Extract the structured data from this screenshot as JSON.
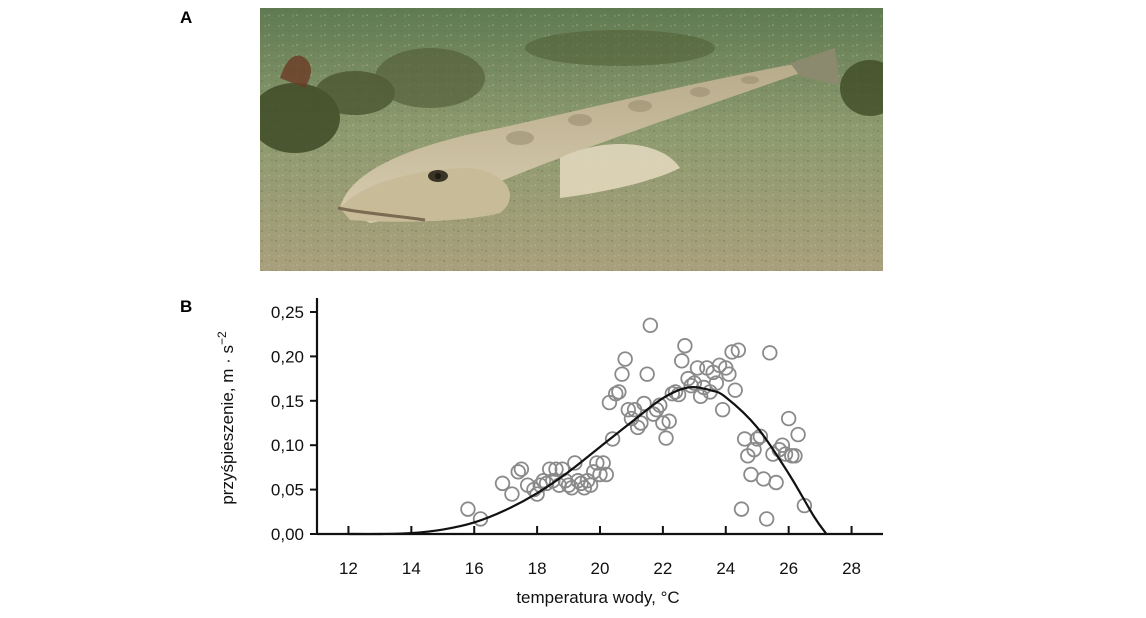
{
  "panels": {
    "a_label": "A",
    "b_label": "B"
  },
  "photo": {
    "subject": "flatfish-on-sandy-seabed"
  },
  "chart_data": {
    "type": "scatter",
    "title": "",
    "xlabel": "temperatura wody, °C",
    "ylabel": "przyśpieszenie, m · s",
    "ylabel_exponent": "−2",
    "xlim": [
      11,
      29
    ],
    "ylim": [
      0,
      0.25
    ],
    "x_ticks": [
      12,
      14,
      16,
      18,
      20,
      22,
      24,
      26,
      28
    ],
    "x_tick_labels": [
      "12",
      "14",
      "16",
      "18",
      "20",
      "22",
      "24",
      "26",
      "28"
    ],
    "y_ticks": [
      0,
      0.05,
      0.1,
      0.15,
      0.2,
      0.25
    ],
    "y_tick_labels": [
      "0,00",
      "0,05",
      "0,10",
      "0,15",
      "0,20",
      "0,25"
    ],
    "grid": false,
    "marker": "open-circle",
    "marker_color": "#8a8a8a",
    "line_color": "#111111",
    "series": [
      {
        "kind": "points",
        "x": [
          15.8,
          16.2,
          16.9,
          17.2,
          17.4,
          17.5,
          17.7,
          17.9,
          18.0,
          18.1,
          18.2,
          18.3,
          18.4,
          18.5,
          18.6,
          18.7,
          18.8,
          18.9,
          19.0,
          19.1,
          19.2,
          19.3,
          19.4,
          19.5,
          19.6,
          19.7,
          19.8,
          19.9,
          20.0,
          20.1,
          20.2,
          20.3,
          20.4,
          20.5,
          20.6,
          20.7,
          20.8,
          20.9,
          21.0,
          21.1,
          21.2,
          21.3,
          21.4,
          21.5,
          21.6,
          21.7,
          21.8,
          21.9,
          22.0,
          22.1,
          22.2,
          22.3,
          22.4,
          22.5,
          22.6,
          22.7,
          22.8,
          22.9,
          23.0,
          23.1,
          23.2,
          23.3,
          23.4,
          23.5,
          23.6,
          23.7,
          23.8,
          23.9,
          24.0,
          24.1,
          24.2,
          24.3,
          24.4,
          24.5,
          24.6,
          24.7,
          24.8,
          24.9,
          25.0,
          25.1,
          25.2,
          25.3,
          25.4,
          25.5,
          25.6,
          25.7,
          25.8,
          25.9,
          26.0,
          26.1,
          26.2,
          26.3,
          26.5
        ],
        "y": [
          0.028,
          0.017,
          0.057,
          0.045,
          0.07,
          0.073,
          0.055,
          0.05,
          0.045,
          0.055,
          0.06,
          0.057,
          0.073,
          0.06,
          0.073,
          0.055,
          0.073,
          0.06,
          0.055,
          0.052,
          0.08,
          0.06,
          0.057,
          0.052,
          0.06,
          0.055,
          0.07,
          0.08,
          0.067,
          0.08,
          0.067,
          0.148,
          0.107,
          0.158,
          0.16,
          0.18,
          0.197,
          0.14,
          0.13,
          0.14,
          0.12,
          0.125,
          0.147,
          0.18,
          0.235,
          0.135,
          0.14,
          0.145,
          0.125,
          0.108,
          0.127,
          0.158,
          0.16,
          0.157,
          0.195,
          0.212,
          0.175,
          0.167,
          0.17,
          0.187,
          0.155,
          0.165,
          0.187,
          0.16,
          0.182,
          0.17,
          0.19,
          0.14,
          0.187,
          0.18,
          0.205,
          0.162,
          0.207,
          0.028,
          0.107,
          0.088,
          0.067,
          0.095,
          0.107,
          0.11,
          0.062,
          0.017,
          0.204,
          0.09,
          0.058,
          0.095,
          0.1,
          0.09,
          0.13,
          0.088,
          0.088,
          0.112,
          0.032
        ]
      },
      {
        "kind": "fitted-curve",
        "x": [
          12,
          13,
          14,
          15,
          16,
          17,
          18,
          19,
          20,
          21,
          22,
          22.8,
          23.5,
          24,
          25,
          26,
          26.8,
          27.2
        ],
        "y": [
          0.0,
          0.0,
          0.001,
          0.005,
          0.013,
          0.027,
          0.046,
          0.07,
          0.098,
          0.126,
          0.153,
          0.165,
          0.162,
          0.154,
          0.12,
          0.068,
          0.02,
          0.0
        ]
      }
    ]
  }
}
